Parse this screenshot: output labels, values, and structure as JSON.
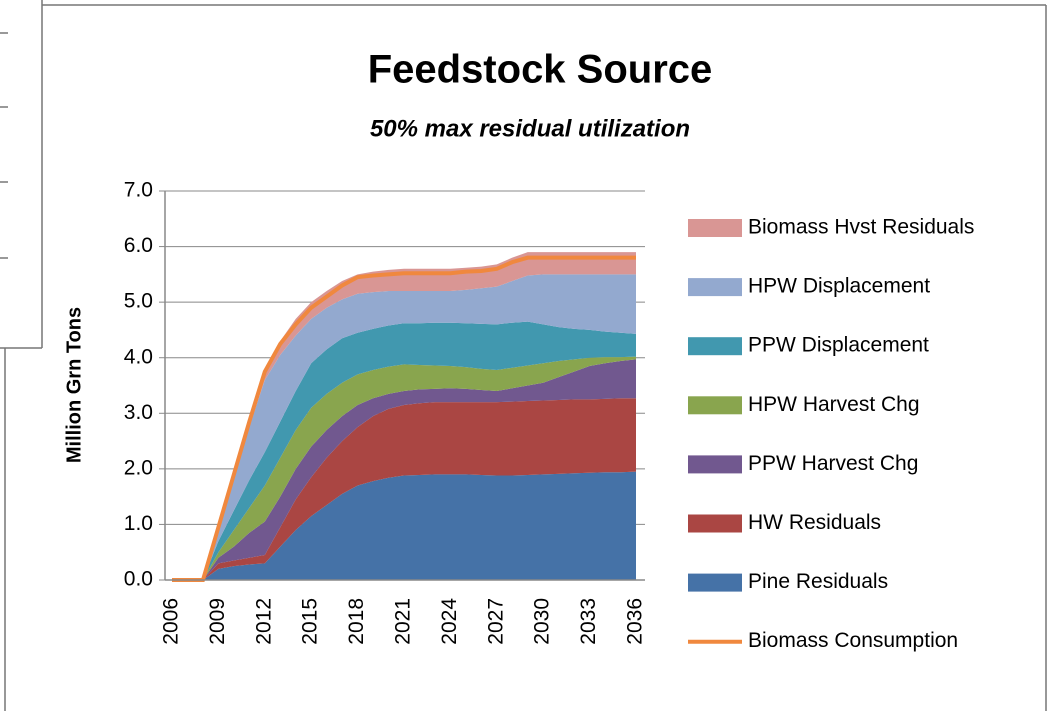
{
  "chart_data": {
    "type": "stacked_area",
    "title": "Feedstock Source",
    "subtitle": "50% max residual utilization",
    "y_label": "Million Grn Tons",
    "categories": [
      "2006",
      null,
      null,
      "2009",
      null,
      null,
      "2012",
      null,
      null,
      "2015",
      null,
      null,
      "2018",
      null,
      null,
      "2021",
      null,
      null,
      "2024",
      null,
      null,
      "2027",
      null,
      null,
      "2030",
      null,
      null,
      "2033",
      null,
      null,
      "2036"
    ],
    "ylim": [
      0,
      7
    ],
    "yticks": [
      {
        "value": 0,
        "label": "0.0"
      },
      {
        "value": 1,
        "label": "1.0"
      },
      {
        "value": 2,
        "label": "2.0"
      },
      {
        "value": 3,
        "label": "3.0"
      },
      {
        "value": 4,
        "label": "4.0"
      },
      {
        "value": 5,
        "label": "5.0"
      },
      {
        "value": 6,
        "label": "6.0"
      },
      {
        "value": 7,
        "label": "7.0"
      }
    ],
    "grid": true,
    "legend": "right",
    "series": [
      {
        "name": "Pine Residuals",
        "color": "#4572a7",
        "values": [
          0,
          0,
          0,
          0.2,
          0.25,
          0.28,
          0.3,
          0.6,
          0.9,
          1.15,
          1.35,
          1.55,
          1.7,
          1.78,
          1.84,
          1.88,
          1.89,
          1.9,
          1.9,
          1.9,
          1.89,
          1.88,
          1.88,
          1.89,
          1.9,
          1.91,
          1.92,
          1.93,
          1.94,
          1.94,
          1.95
        ]
      },
      {
        "name": "HW Residuals",
        "color": "#aa4643",
        "values": [
          0,
          0,
          0,
          0.1,
          0.1,
          0.12,
          0.15,
          0.35,
          0.55,
          0.7,
          0.85,
          0.95,
          1.05,
          1.17,
          1.24,
          1.27,
          1.29,
          1.3,
          1.3,
          1.3,
          1.31,
          1.32,
          1.33,
          1.33,
          1.33,
          1.33,
          1.33,
          1.32,
          1.32,
          1.33,
          1.32
        ]
      },
      {
        "name": "PPW Harvest Chg",
        "color": "#71588f",
        "values": [
          0,
          0,
          0,
          0.1,
          0.25,
          0.45,
          0.6,
          0.55,
          0.55,
          0.55,
          0.5,
          0.45,
          0.4,
          0.32,
          0.27,
          0.25,
          0.25,
          0.24,
          0.25,
          0.24,
          0.22,
          0.2,
          0.24,
          0.28,
          0.32,
          0.41,
          0.5,
          0.6,
          0.64,
          0.67,
          0.7
        ]
      },
      {
        "name": "HPW Harvest Chg",
        "color": "#89a54e",
        "values": [
          0,
          0,
          0,
          0.1,
          0.3,
          0.45,
          0.65,
          0.7,
          0.7,
          0.7,
          0.65,
          0.6,
          0.55,
          0.51,
          0.49,
          0.48,
          0.44,
          0.42,
          0.4,
          0.39,
          0.38,
          0.38,
          0.37,
          0.36,
          0.35,
          0.29,
          0.22,
          0.15,
          0.11,
          0.07,
          0.05
        ]
      },
      {
        "name": "PPW Displacement",
        "color": "#4198af",
        "values": [
          0,
          0,
          0,
          0.2,
          0.35,
          0.5,
          0.6,
          0.65,
          0.7,
          0.8,
          0.8,
          0.8,
          0.75,
          0.74,
          0.74,
          0.74,
          0.75,
          0.77,
          0.78,
          0.79,
          0.81,
          0.82,
          0.81,
          0.79,
          0.7,
          0.61,
          0.55,
          0.5,
          0.46,
          0.44,
          0.41
        ]
      },
      {
        "name": "HPW Displacement",
        "color": "#93a9cf",
        "values": [
          0,
          0,
          0,
          0.2,
          0.6,
          0.95,
          1.3,
          1.2,
          1.0,
          0.8,
          0.75,
          0.7,
          0.7,
          0.66,
          0.62,
          0.58,
          0.58,
          0.57,
          0.57,
          0.6,
          0.64,
          0.68,
          0.75,
          0.83,
          0.9,
          0.95,
          0.98,
          1.0,
          1.03,
          1.05,
          1.07
        ]
      },
      {
        "name": "Biomass Hvst Residuals",
        "color": "#d99694",
        "values": [
          0,
          0,
          0,
          0.1,
          0.1,
          0.15,
          0.2,
          0.25,
          0.3,
          0.3,
          0.3,
          0.33,
          0.35,
          0.37,
          0.38,
          0.4,
          0.4,
          0.4,
          0.4,
          0.4,
          0.39,
          0.4,
          0.42,
          0.42,
          0.4,
          0.4,
          0.4,
          0.4,
          0.4,
          0.4,
          0.4
        ]
      },
      {
        "name": "Biomass Consumption",
        "type": "line",
        "color": "#f0883e",
        "values": [
          0,
          0,
          0,
          0.95,
          1.9,
          2.85,
          3.75,
          4.25,
          4.6,
          4.9,
          5.1,
          5.3,
          5.45,
          5.48,
          5.5,
          5.52,
          5.52,
          5.52,
          5.52,
          5.55,
          5.56,
          5.6,
          5.72,
          5.8,
          5.8,
          5.8,
          5.8,
          5.8,
          5.8,
          5.8,
          5.8
        ]
      }
    ]
  }
}
